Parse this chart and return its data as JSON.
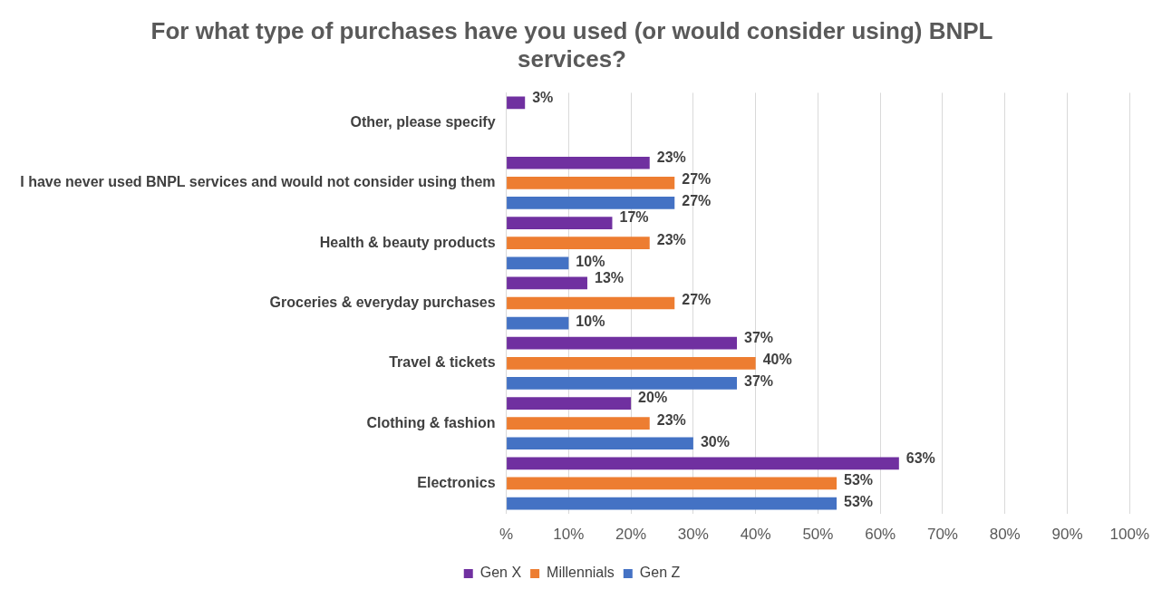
{
  "chart_data": {
    "type": "bar",
    "orientation": "horizontal",
    "title": "For what type of purchases have you used (or would consider using) BNPL services?",
    "categories": [
      "Other, please specify",
      "I have never used BNPL services and would not consider using them",
      "Health & beauty products",
      "Groceries & everyday purchases",
      "Travel & tickets",
      "Clothing & fashion",
      "Electronics"
    ],
    "series": [
      {
        "name": "Gen X",
        "color": "#7030a0",
        "values": [
          3,
          23,
          17,
          13,
          37,
          20,
          63
        ],
        "value_labels": [
          "3%",
          "23%",
          "17%",
          "13%",
          "37%",
          "20%",
          "63%"
        ]
      },
      {
        "name": "Millennials",
        "color": "#ed7d31",
        "values": [
          null,
          27,
          23,
          27,
          40,
          23,
          53
        ],
        "value_labels": [
          null,
          "27%",
          "23%",
          "27%",
          "40%",
          "23%",
          "53%"
        ]
      },
      {
        "name": "Gen Z",
        "color": "#4472c4",
        "values": [
          null,
          27,
          10,
          10,
          37,
          30,
          53
        ],
        "value_labels": [
          null,
          "27%",
          "10%",
          "10%",
          "37%",
          "30%",
          "53%"
        ]
      }
    ],
    "xlim": [
      0,
      100
    ],
    "xticks": [
      {
        "value": 0,
        "label": "%"
      },
      {
        "value": 10,
        "label": "10%"
      },
      {
        "value": 20,
        "label": "20%"
      },
      {
        "value": 30,
        "label": "30%"
      },
      {
        "value": 40,
        "label": "40%"
      },
      {
        "value": 50,
        "label": "50%"
      },
      {
        "value": 60,
        "label": "60%"
      },
      {
        "value": 70,
        "label": "70%"
      },
      {
        "value": 80,
        "label": "80%"
      },
      {
        "value": 90,
        "label": "90%"
      },
      {
        "value": 100,
        "label": "100%"
      }
    ],
    "grid": "x",
    "legend": "bottom"
  }
}
